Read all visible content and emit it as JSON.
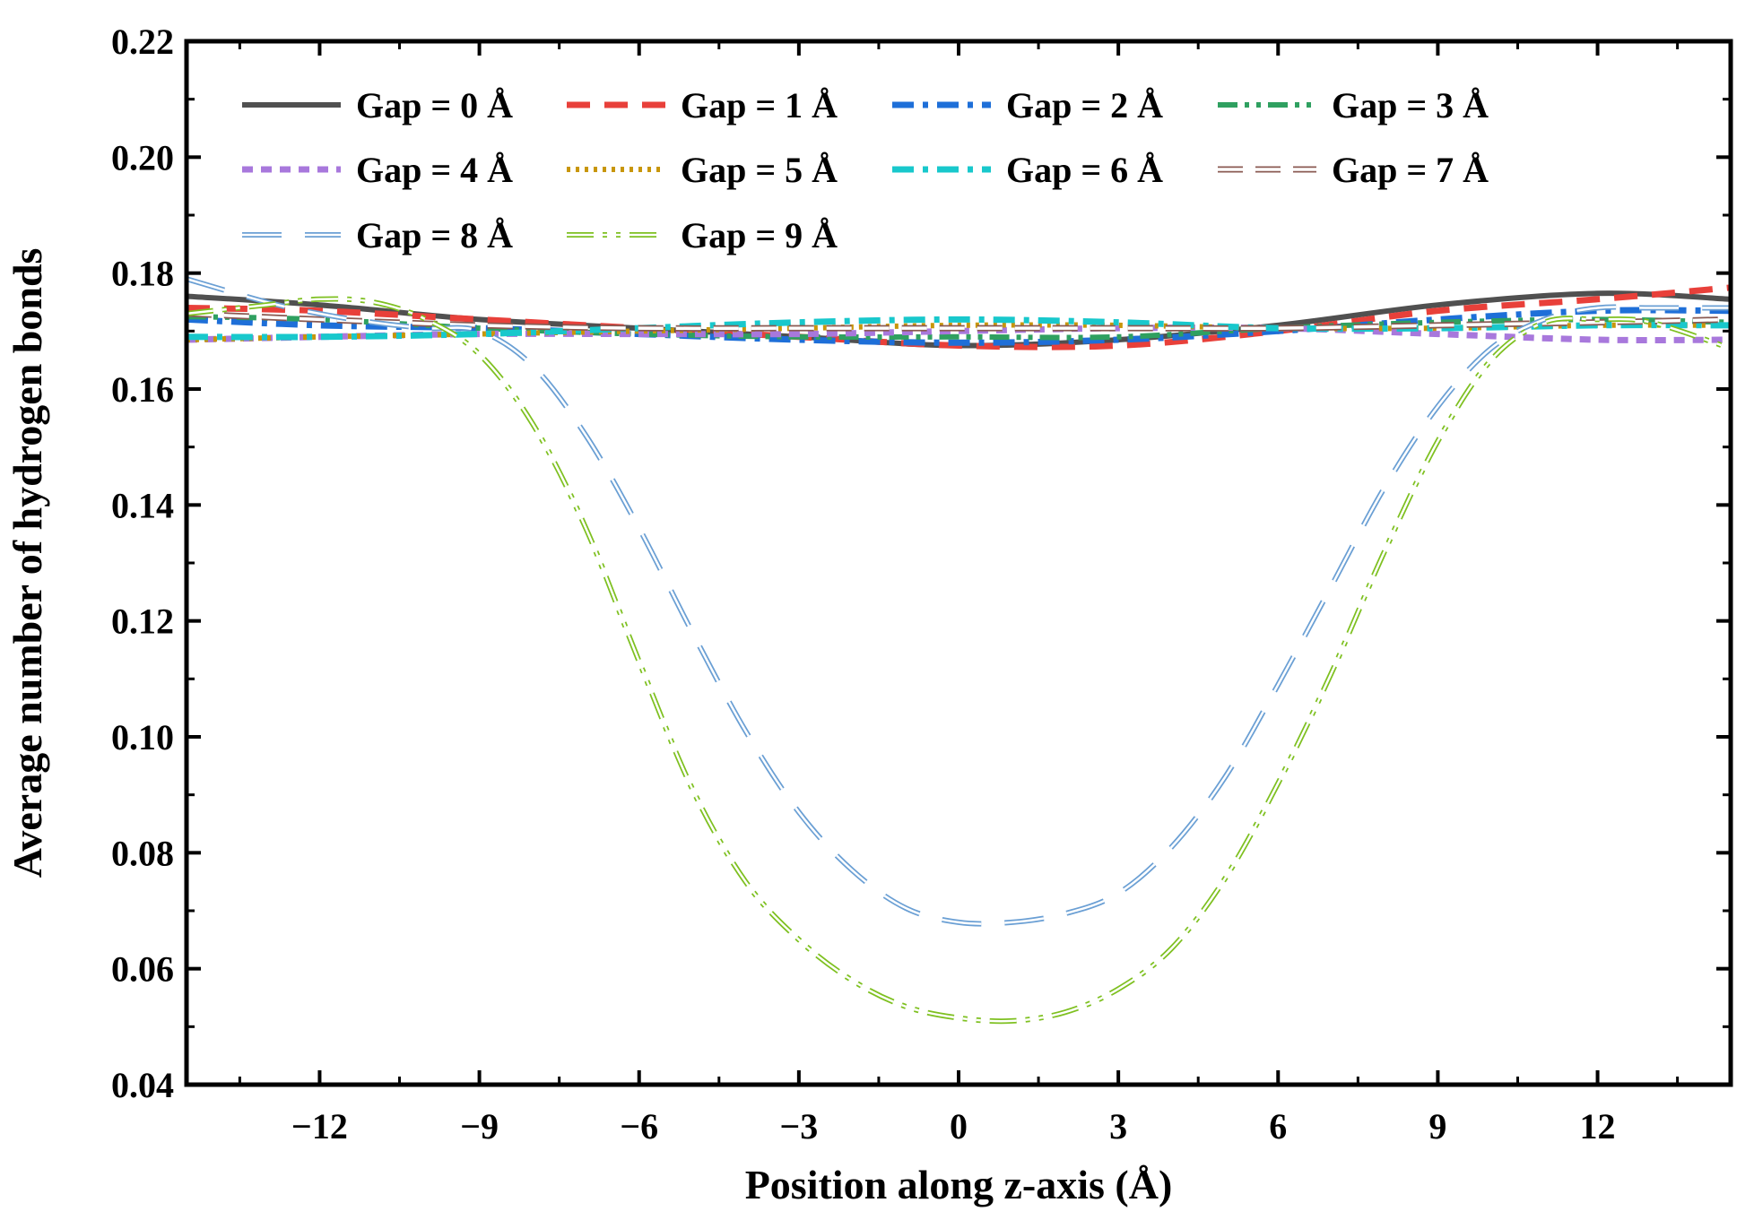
{
  "chart_data": {
    "type": "line",
    "title": "",
    "xlabel": "Position along z-axis (Å)",
    "ylabel": "Average number of hydrogen bonds",
    "xlim": [
      -14.5,
      14.5
    ],
    "ylim": [
      0.04,
      0.22
    ],
    "xticks": [
      -12,
      -9,
      -6,
      -3,
      0,
      3,
      6,
      9,
      12
    ],
    "xtick_labels": [
      "−12",
      "−9",
      "−6",
      "−3",
      "0",
      "3",
      "6",
      "9",
      "12"
    ],
    "yticks": [
      0.04,
      0.06,
      0.08,
      0.1,
      0.12,
      0.14,
      0.16,
      0.18,
      0.2,
      0.22
    ],
    "ytick_labels": [
      "0.04",
      "0.06",
      "0.08",
      "0.10",
      "0.12",
      "0.14",
      "0.16",
      "0.18",
      "0.20",
      "0.22"
    ],
    "legend_position": "top-left",
    "series": [
      {
        "name": "Gap = 0 Å",
        "color": "#505050",
        "style": "solid",
        "x": [
          -14.5,
          -12,
          -9,
          -6,
          -3,
          0,
          3,
          6,
          9,
          12,
          14.5
        ],
        "y": [
          0.176,
          0.1745,
          0.172,
          0.1705,
          0.169,
          0.1675,
          0.1685,
          0.171,
          0.1745,
          0.1765,
          0.1755
        ]
      },
      {
        "name": "Gap = 1 Å",
        "color": "#e8403a",
        "style": "dash",
        "x": [
          -14.5,
          -12,
          -9,
          -6,
          -3,
          0,
          3,
          6,
          9,
          12,
          14.5
        ],
        "y": [
          0.174,
          0.1735,
          0.172,
          0.1705,
          0.169,
          0.1675,
          0.1675,
          0.17,
          0.1735,
          0.1755,
          0.1775
        ]
      },
      {
        "name": "Gap = 2 Å",
        "color": "#1e6fd8",
        "style": "dashdot",
        "x": [
          -14.5,
          -12,
          -9,
          -6,
          -3,
          0,
          3,
          6,
          9,
          12,
          14.5
        ],
        "y": [
          0.172,
          0.171,
          0.1705,
          0.1695,
          0.1685,
          0.168,
          0.1685,
          0.17,
          0.172,
          0.1735,
          0.1735
        ]
      },
      {
        "name": "Gap = 3 Å",
        "color": "#2fa060",
        "style": "dashdotdot",
        "x": [
          -14.5,
          -12,
          -9,
          -6,
          -3,
          0,
          3,
          6,
          9,
          12,
          14.5
        ],
        "y": [
          0.1725,
          0.172,
          0.1705,
          0.1695,
          0.169,
          0.169,
          0.169,
          0.1705,
          0.1715,
          0.172,
          0.1715
        ]
      },
      {
        "name": "Gap = 4 Å",
        "color": "#a878dc",
        "style": "shortdash",
        "x": [
          -14.5,
          -12,
          -9,
          -6,
          -3,
          0,
          3,
          6,
          9,
          12,
          14.5
        ],
        "y": [
          0.1685,
          0.169,
          0.1695,
          0.1695,
          0.1695,
          0.17,
          0.1705,
          0.1705,
          0.1695,
          0.1685,
          0.1685
        ]
      },
      {
        "name": "Gap = 5 Å",
        "color": "#c8960a",
        "style": "dot",
        "x": [
          -14.5,
          -12,
          -9,
          -6,
          -3,
          0,
          3,
          6,
          9,
          12,
          14.5
        ],
        "y": [
          0.1685,
          0.169,
          0.1695,
          0.17,
          0.1705,
          0.171,
          0.171,
          0.1705,
          0.1705,
          0.171,
          0.171
        ]
      },
      {
        "name": "Gap = 6 Å",
        "color": "#18c8cc",
        "style": "dashdot",
        "x": [
          -14.5,
          -12,
          -9,
          -6,
          -3,
          0,
          3,
          6,
          9,
          12,
          14.5
        ],
        "y": [
          0.169,
          0.169,
          0.1695,
          0.1705,
          0.1715,
          0.172,
          0.1715,
          0.1705,
          0.1705,
          0.171,
          0.171
        ]
      },
      {
        "name": "Gap = 7 Å",
        "color": "#8a5a52",
        "style": "dash-hollow",
        "x": [
          -14.5,
          -12,
          -9,
          -6,
          -3,
          0,
          3,
          6,
          9,
          12,
          14.5
        ],
        "y": [
          0.173,
          0.172,
          0.171,
          0.1705,
          0.1705,
          0.1705,
          0.1705,
          0.1705,
          0.171,
          0.1715,
          0.172
        ]
      },
      {
        "name": "Gap = 8 Å",
        "color": "#6a9fd4",
        "style": "longdash",
        "x": [
          -14.5,
          -13,
          -12,
          -11,
          -10,
          -9,
          -8,
          -7,
          -6,
          -5,
          -4,
          -3,
          -2,
          -1,
          0,
          1,
          2,
          3,
          4,
          5,
          6,
          7,
          8,
          9,
          10,
          11,
          12,
          13,
          14.5
        ],
        "y": [
          0.179,
          0.175,
          0.173,
          0.1715,
          0.1705,
          0.17,
          0.164,
          0.152,
          0.136,
          0.118,
          0.101,
          0.087,
          0.077,
          0.0705,
          0.068,
          0.068,
          0.0695,
          0.073,
          0.081,
          0.093,
          0.109,
          0.126,
          0.143,
          0.157,
          0.167,
          0.172,
          0.174,
          0.174,
          0.174
        ]
      },
      {
        "name": "Gap = 9 Å",
        "color": "#7ec020",
        "style": "dashdotdot-hollow",
        "x": [
          -14.5,
          -13,
          -12,
          -11,
          -10,
          -9,
          -8,
          -7,
          -6,
          -5,
          -4,
          -3,
          -2,
          -1,
          0,
          1,
          2,
          3,
          4,
          5,
          6,
          7,
          8,
          9,
          10,
          11,
          12,
          13,
          14.5
        ],
        "y": [
          0.173,
          0.1745,
          0.1755,
          0.175,
          0.172,
          0.166,
          0.154,
          0.136,
          0.113,
          0.091,
          0.075,
          0.065,
          0.058,
          0.0535,
          0.0515,
          0.051,
          0.0525,
          0.0565,
          0.0635,
          0.0755,
          0.092,
          0.111,
          0.132,
          0.151,
          0.165,
          0.1715,
          0.172,
          0.1715,
          0.167
        ]
      }
    ]
  }
}
